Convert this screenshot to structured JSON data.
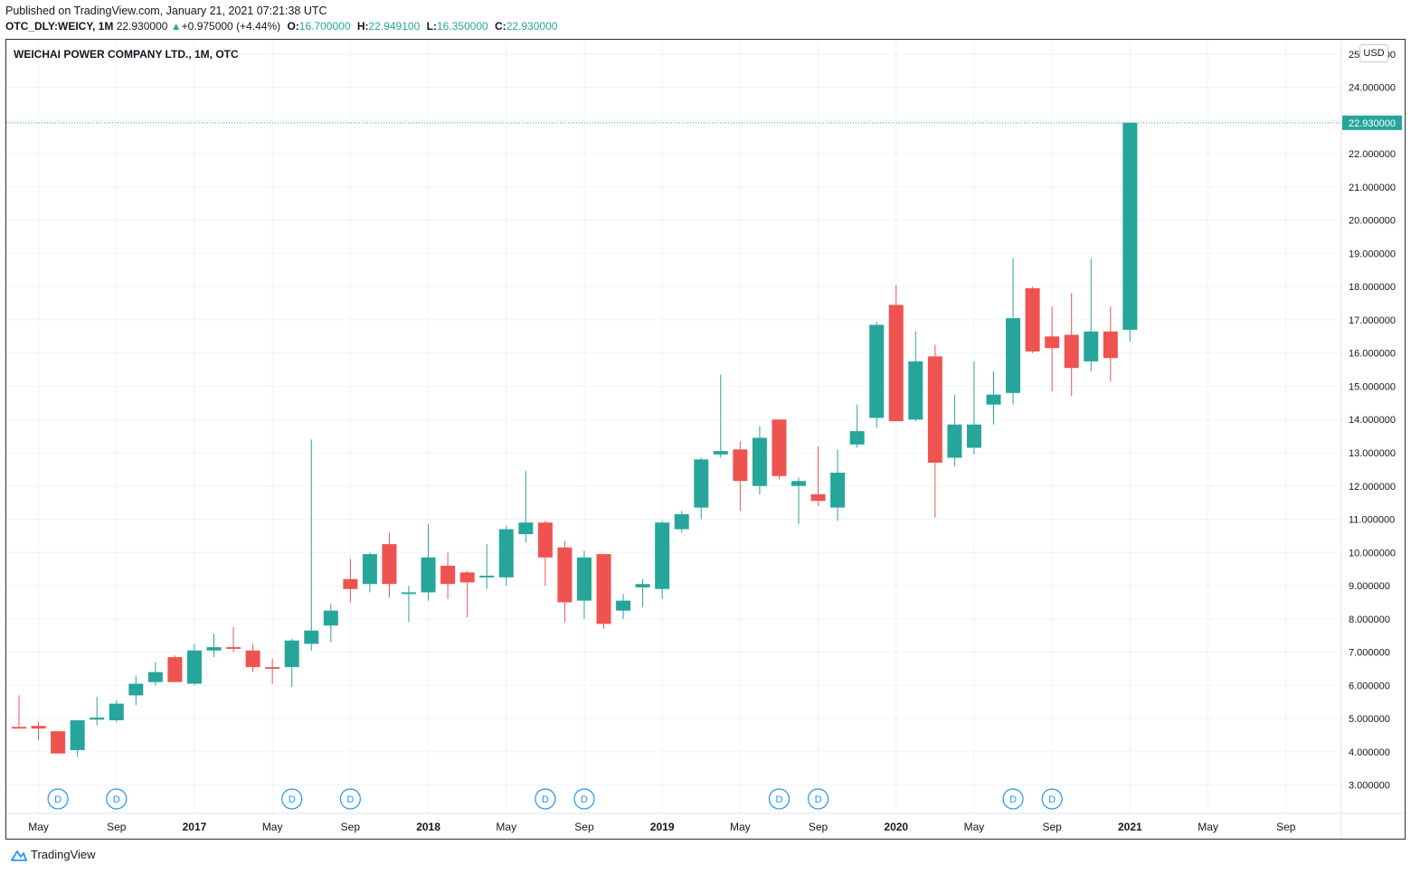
{
  "header": {
    "published": "Published on TradingView.com, January 21, 2021 07:21:38 UTC",
    "symbol": "OTC_DLY:WEICY, 1M",
    "last": "22.930000",
    "change": "+0.975000 (+4.44%)",
    "o_label": "O:",
    "o_value": "16.700000",
    "h_label": "H:",
    "h_value": "22.949100",
    "l_label": "L:",
    "l_value": "16.350000",
    "c_label": "C:",
    "c_value": "22.930000"
  },
  "chart_title": "WEICHAI POWER COMPANY LTD., 1M, OTC",
  "currency": "USD",
  "footer": {
    "brand": "TradingView"
  },
  "colors": {
    "up": "#26a69a",
    "down": "#ef5350",
    "grid": "#f0f3fa",
    "axis_text": "#131722",
    "price_tag": "#26a69a"
  },
  "chart_data": {
    "type": "candlestick",
    "title": "WEICHAI POWER COMPANY LTD., 1M, OTC",
    "ylim": [
      2.4,
      25.3
    ],
    "y_ticks": [
      "3.000000",
      "4.000000",
      "5.000000",
      "6.000000",
      "7.000000",
      "8.000000",
      "9.000000",
      "10.000000",
      "11.000000",
      "12.000000",
      "13.000000",
      "14.000000",
      "15.000000",
      "16.000000",
      "17.000000",
      "18.000000",
      "19.000000",
      "20.000000",
      "21.000000",
      "22.000000",
      "23.000000",
      "24.000000",
      "25.000000"
    ],
    "x_labels": [
      {
        "idx": 1,
        "label": "May",
        "bold": false
      },
      {
        "idx": 5,
        "label": "Sep",
        "bold": false
      },
      {
        "idx": 9,
        "label": "2017",
        "bold": true
      },
      {
        "idx": 13,
        "label": "May",
        "bold": false
      },
      {
        "idx": 17,
        "label": "Sep",
        "bold": false
      },
      {
        "idx": 21,
        "label": "2018",
        "bold": true
      },
      {
        "idx": 25,
        "label": "May",
        "bold": false
      },
      {
        "idx": 29,
        "label": "Sep",
        "bold": false
      },
      {
        "idx": 33,
        "label": "2019",
        "bold": true
      },
      {
        "idx": 37,
        "label": "May",
        "bold": false
      },
      {
        "idx": 41,
        "label": "Sep",
        "bold": false
      },
      {
        "idx": 45,
        "label": "2020",
        "bold": true
      },
      {
        "idx": 49,
        "label": "May",
        "bold": false
      },
      {
        "idx": 53,
        "label": "Sep",
        "bold": false
      },
      {
        "idx": 57,
        "label": "2021",
        "bold": true
      },
      {
        "idx": 61,
        "label": "May",
        "bold": false
      },
      {
        "idx": 65,
        "label": "Sep",
        "bold": false
      }
    ],
    "dividends": [
      {
        "idx": 2,
        "label": "D"
      },
      {
        "idx": 5,
        "label": "D"
      },
      {
        "idx": 14,
        "label": "D"
      },
      {
        "idx": 17,
        "label": "D"
      },
      {
        "idx": 27,
        "label": "D"
      },
      {
        "idx": 29,
        "label": "D"
      },
      {
        "idx": 39,
        "label": "D"
      },
      {
        "idx": 41,
        "label": "D"
      },
      {
        "idx": 51,
        "label": "D"
      },
      {
        "idx": 53,
        "label": "D"
      }
    ],
    "last_price": 22.93,
    "last_price_label": "22.930000",
    "candles": [
      {
        "date": "2016-04",
        "o": 4.75,
        "h": 5.7,
        "l": 4.7,
        "c": 4.7
      },
      {
        "date": "2016-05",
        "o": 4.78,
        "h": 4.9,
        "l": 4.35,
        "c": 4.7
      },
      {
        "date": "2016-06",
        "o": 4.62,
        "h": 4.62,
        "l": 3.95,
        "c": 3.95
      },
      {
        "date": "2016-07",
        "o": 4.05,
        "h": 4.95,
        "l": 3.85,
        "c": 4.95
      },
      {
        "date": "2016-08",
        "o": 4.97,
        "h": 5.65,
        "l": 4.8,
        "c": 5.03
      },
      {
        "date": "2016-09",
        "o": 4.95,
        "h": 5.55,
        "l": 4.9,
        "c": 5.45
      },
      {
        "date": "2016-10",
        "o": 5.7,
        "h": 6.3,
        "l": 5.4,
        "c": 6.05
      },
      {
        "date": "2016-11",
        "o": 6.1,
        "h": 6.7,
        "l": 6.0,
        "c": 6.4
      },
      {
        "date": "2016-12",
        "o": 6.85,
        "h": 6.9,
        "l": 6.1,
        "c": 6.1
      },
      {
        "date": "2017-01",
        "o": 6.05,
        "h": 7.25,
        "l": 6.0,
        "c": 7.05
      },
      {
        "date": "2017-02",
        "o": 7.05,
        "h": 7.55,
        "l": 6.85,
        "c": 7.15
      },
      {
        "date": "2017-03",
        "o": 7.15,
        "h": 7.75,
        "l": 7.0,
        "c": 7.1
      },
      {
        "date": "2017-04",
        "o": 7.05,
        "h": 7.25,
        "l": 6.4,
        "c": 6.55
      },
      {
        "date": "2017-05",
        "o": 6.55,
        "h": 6.8,
        "l": 6.05,
        "c": 6.5
      },
      {
        "date": "2017-06",
        "o": 6.55,
        "h": 7.4,
        "l": 5.95,
        "c": 7.35
      },
      {
        "date": "2017-07",
        "o": 7.25,
        "h": 13.4,
        "l": 7.05,
        "c": 7.65
      },
      {
        "date": "2017-08",
        "o": 7.8,
        "h": 8.45,
        "l": 7.3,
        "c": 8.25
      },
      {
        "date": "2017-09",
        "o": 9.2,
        "h": 9.8,
        "l": 8.5,
        "c": 8.9
      },
      {
        "date": "2017-10",
        "o": 9.05,
        "h": 10.0,
        "l": 8.8,
        "c": 9.95
      },
      {
        "date": "2017-11",
        "o": 10.25,
        "h": 10.6,
        "l": 8.65,
        "c": 9.05
      },
      {
        "date": "2017-12",
        "o": 8.75,
        "h": 9.0,
        "l": 7.9,
        "c": 8.8
      },
      {
        "date": "2018-01",
        "o": 8.8,
        "h": 10.85,
        "l": 8.55,
        "c": 9.85
      },
      {
        "date": "2018-02",
        "o": 9.6,
        "h": 10.0,
        "l": 8.6,
        "c": 9.05
      },
      {
        "date": "2018-03",
        "o": 9.4,
        "h": 9.45,
        "l": 8.05,
        "c": 9.1
      },
      {
        "date": "2018-04",
        "o": 9.25,
        "h": 10.25,
        "l": 8.9,
        "c": 9.3
      },
      {
        "date": "2018-05",
        "o": 9.25,
        "h": 10.8,
        "l": 9.0,
        "c": 10.7
      },
      {
        "date": "2018-06",
        "o": 10.55,
        "h": 12.45,
        "l": 10.3,
        "c": 10.9
      },
      {
        "date": "2018-07",
        "o": 10.9,
        "h": 10.95,
        "l": 9.0,
        "c": 9.85
      },
      {
        "date": "2018-08",
        "o": 10.15,
        "h": 10.35,
        "l": 7.9,
        "c": 8.5
      },
      {
        "date": "2018-09",
        "o": 8.55,
        "h": 10.05,
        "l": 8.0,
        "c": 9.85
      },
      {
        "date": "2018-10",
        "o": 9.95,
        "h": 9.95,
        "l": 7.7,
        "c": 7.85
      },
      {
        "date": "2018-11",
        "o": 8.25,
        "h": 8.75,
        "l": 8.0,
        "c": 8.55
      },
      {
        "date": "2018-12",
        "o": 8.95,
        "h": 9.2,
        "l": 8.35,
        "c": 9.05
      },
      {
        "date": "2019-01",
        "o": 8.9,
        "h": 10.95,
        "l": 8.6,
        "c": 10.9
      },
      {
        "date": "2019-02",
        "o": 10.7,
        "h": 11.25,
        "l": 10.6,
        "c": 11.15
      },
      {
        "date": "2019-03",
        "o": 11.35,
        "h": 12.85,
        "l": 11.0,
        "c": 12.8
      },
      {
        "date": "2019-04",
        "o": 12.95,
        "h": 15.35,
        "l": 12.85,
        "c": 13.05
      },
      {
        "date": "2019-05",
        "o": 13.1,
        "h": 13.35,
        "l": 11.25,
        "c": 12.15
      },
      {
        "date": "2019-06",
        "o": 12.0,
        "h": 13.8,
        "l": 11.75,
        "c": 13.45
      },
      {
        "date": "2019-07",
        "o": 14.0,
        "h": 14.0,
        "l": 12.2,
        "c": 12.3
      },
      {
        "date": "2019-08",
        "o": 12.0,
        "h": 12.25,
        "l": 10.85,
        "c": 12.15
      },
      {
        "date": "2019-09",
        "o": 11.75,
        "h": 13.2,
        "l": 11.4,
        "c": 11.55
      },
      {
        "date": "2019-10",
        "o": 11.35,
        "h": 13.1,
        "l": 10.95,
        "c": 12.4
      },
      {
        "date": "2019-11",
        "o": 13.25,
        "h": 14.45,
        "l": 13.15,
        "c": 13.65
      },
      {
        "date": "2019-12",
        "o": 14.05,
        "h": 16.95,
        "l": 13.75,
        "c": 16.85
      },
      {
        "date": "2020-01",
        "o": 17.45,
        "h": 18.05,
        "l": 13.95,
        "c": 13.95
      },
      {
        "date": "2020-02",
        "o": 14.0,
        "h": 16.65,
        "l": 13.95,
        "c": 15.75
      },
      {
        "date": "2020-03",
        "o": 15.9,
        "h": 16.25,
        "l": 11.05,
        "c": 12.7
      },
      {
        "date": "2020-04",
        "o": 12.85,
        "h": 14.75,
        "l": 12.6,
        "c": 13.85
      },
      {
        "date": "2020-05",
        "o": 13.15,
        "h": 15.75,
        "l": 12.95,
        "c": 13.85
      },
      {
        "date": "2020-06",
        "o": 14.45,
        "h": 15.45,
        "l": 13.85,
        "c": 14.75
      },
      {
        "date": "2020-07",
        "o": 14.8,
        "h": 18.85,
        "l": 14.45,
        "c": 17.05
      },
      {
        "date": "2020-08",
        "o": 17.95,
        "h": 18.0,
        "l": 16.0,
        "c": 16.05
      },
      {
        "date": "2020-09",
        "o": 16.5,
        "h": 17.4,
        "l": 14.85,
        "c": 16.15
      },
      {
        "date": "2020-10",
        "o": 16.55,
        "h": 17.8,
        "l": 14.7,
        "c": 15.55
      },
      {
        "date": "2020-11",
        "o": 15.75,
        "h": 18.85,
        "l": 15.45,
        "c": 16.65
      },
      {
        "date": "2020-12",
        "o": 16.65,
        "h": 17.4,
        "l": 15.15,
        "c": 15.85
      },
      {
        "date": "2021-01",
        "o": 16.7,
        "h": 22.9491,
        "l": 16.35,
        "c": 22.93
      }
    ]
  }
}
